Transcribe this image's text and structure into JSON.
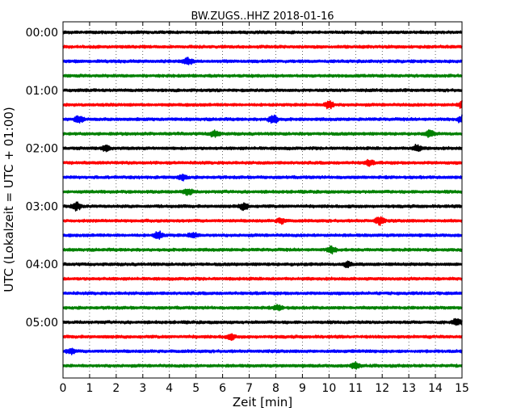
{
  "chart_data": {
    "type": "line",
    "chart_kind": "seismogram dayplot",
    "title": "BW.ZUGS..HHZ 2018-01-16",
    "xlabel": "Zeit  [min]",
    "ylabel": "UTC (Lokalzeit = UTC + 01:00)",
    "xlim": [
      0,
      15
    ],
    "x_ticks": [
      0,
      1,
      2,
      3,
      4,
      5,
      6,
      7,
      8,
      9,
      10,
      11,
      12,
      13,
      14,
      15
    ],
    "x_tick_labels": [
      "0",
      "1",
      "2",
      "3",
      "4",
      "5",
      "6",
      "7",
      "8",
      "9",
      "10",
      "11",
      "12",
      "13",
      "14",
      "15"
    ],
    "y_tick_labels": [
      "00:00",
      "01:00",
      "02:00",
      "03:00",
      "04:00",
      "05:00"
    ],
    "y_tick_trace_index": [
      0,
      4,
      8,
      12,
      16,
      20
    ],
    "trace_count": 24,
    "trace_interval_minutes": 15,
    "trace_color_cycle": [
      "#000000",
      "#ff0000",
      "#0000ff",
      "#008000"
    ],
    "vertical_grid": "dotted",
    "events": [
      {
        "trace": 2,
        "minute": 4.7,
        "amp": 0.5
      },
      {
        "trace": 5,
        "minute": 10.0,
        "amp": 0.6
      },
      {
        "trace": 5,
        "minute": 15.0,
        "amp": 0.5
      },
      {
        "trace": 6,
        "minute": 7.9,
        "amp": 0.7
      },
      {
        "trace": 6,
        "minute": 15.0,
        "amp": 0.6
      },
      {
        "trace": 6,
        "minute": 0.6,
        "amp": 0.5
      },
      {
        "trace": 7,
        "minute": 5.7,
        "amp": 0.5
      },
      {
        "trace": 7,
        "minute": 13.8,
        "amp": 0.5
      },
      {
        "trace": 8,
        "minute": 1.6,
        "amp": 0.4
      },
      {
        "trace": 8,
        "minute": 13.3,
        "amp": 0.5
      },
      {
        "trace": 9,
        "minute": 11.5,
        "amp": 0.4
      },
      {
        "trace": 10,
        "minute": 4.5,
        "amp": 0.4
      },
      {
        "trace": 11,
        "minute": 4.7,
        "amp": 0.5
      },
      {
        "trace": 12,
        "minute": 0.5,
        "amp": 0.6
      },
      {
        "trace": 12,
        "minute": 6.8,
        "amp": 0.5
      },
      {
        "trace": 13,
        "minute": 8.2,
        "amp": 0.4
      },
      {
        "trace": 13,
        "minute": 11.9,
        "amp": 0.6
      },
      {
        "trace": 14,
        "minute": 3.6,
        "amp": 0.6
      },
      {
        "trace": 14,
        "minute": 4.9,
        "amp": 0.4
      },
      {
        "trace": 15,
        "minute": 10.1,
        "amp": 0.5
      },
      {
        "trace": 16,
        "minute": 10.7,
        "amp": 0.4
      },
      {
        "trace": 19,
        "minute": 8.1,
        "amp": 0.4
      },
      {
        "trace": 20,
        "minute": 14.8,
        "amp": 0.5
      },
      {
        "trace": 21,
        "minute": 6.3,
        "amp": 0.4
      },
      {
        "trace": 22,
        "minute": 0.3,
        "amp": 0.4
      },
      {
        "trace": 23,
        "minute": 11.0,
        "amp": 0.4
      }
    ]
  }
}
